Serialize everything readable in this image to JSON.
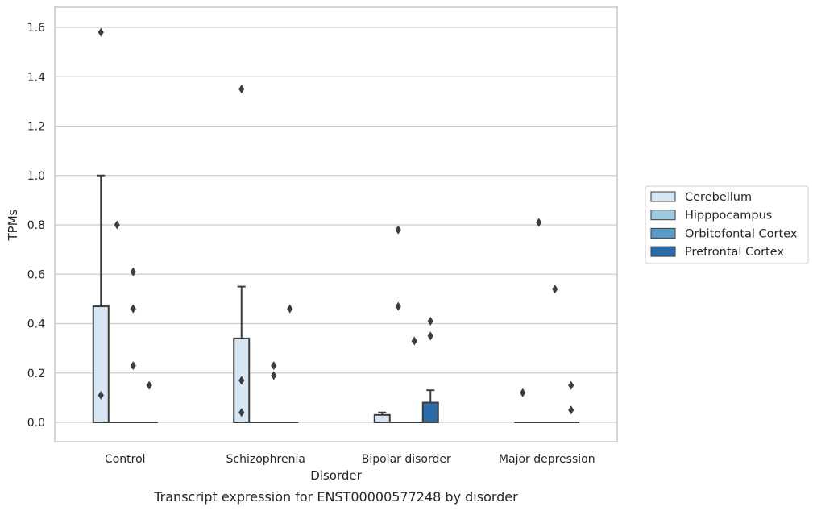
{
  "chart_data": {
    "type": "box",
    "title": "",
    "caption": "Transcript expression for ENST00000577248 by disorder",
    "xlabel": "Disorder",
    "ylabel": "TPMs",
    "ylim": [
      -0.08,
      1.66
    ],
    "yticks": [
      0.0,
      0.2,
      0.4,
      0.6,
      0.8,
      1.0,
      1.2,
      1.4,
      1.6
    ],
    "ytick_labels": [
      "0.0",
      "0.2",
      "0.4",
      "0.6",
      "0.8",
      "1.0",
      "1.2",
      "1.4",
      "1.6"
    ],
    "grid": true,
    "legend_position": "right",
    "categories": [
      "Control",
      "Schizophrenia",
      "Bipolar disorder",
      "Major depression"
    ],
    "series": [
      {
        "name": "Cerebellum",
        "color": "#d6e6f4",
        "boxes": [
          {
            "q1": 0,
            "median": 0,
            "q3": 0.47,
            "whisker_low": 0,
            "whisker_high": 1.0,
            "outliers": [
              1.58,
              0.11
            ]
          },
          {
            "q1": 0,
            "median": 0,
            "q3": 0.34,
            "whisker_low": 0,
            "whisker_high": 0.55,
            "outliers": [
              1.35,
              0.17,
              0.04
            ]
          },
          {
            "q1": 0,
            "median": 0,
            "q3": 0.03,
            "whisker_low": 0,
            "whisker_high": 0.04,
            "outliers": []
          },
          {
            "q1": 0,
            "median": 0,
            "q3": 0,
            "whisker_low": 0,
            "whisker_high": 0,
            "outliers": [
              0.12
            ]
          }
        ]
      },
      {
        "name": "Hipppocampus",
        "color": "#9ecae1",
        "boxes": [
          {
            "q1": 0,
            "median": 0,
            "q3": 0,
            "whisker_low": 0,
            "whisker_high": 0,
            "outliers": [
              0.8
            ]
          },
          {
            "q1": 0,
            "median": 0,
            "q3": 0,
            "whisker_low": 0,
            "whisker_high": 0,
            "outliers": []
          },
          {
            "q1": 0,
            "median": 0,
            "q3": 0,
            "whisker_low": 0,
            "whisker_high": 0,
            "outliers": [
              0.78,
              0.47
            ]
          },
          {
            "q1": 0,
            "median": 0,
            "q3": 0,
            "whisker_low": 0,
            "whisker_high": 0,
            "outliers": [
              0.81
            ]
          }
        ]
      },
      {
        "name": "Orbitofontal Cortex",
        "color": "#5a9ac8",
        "boxes": [
          {
            "q1": 0,
            "median": 0,
            "q3": 0,
            "whisker_low": 0,
            "whisker_high": 0,
            "outliers": [
              0.61,
              0.46,
              0.23
            ]
          },
          {
            "q1": 0,
            "median": 0,
            "q3": 0,
            "whisker_low": 0,
            "whisker_high": 0,
            "outliers": [
              0.23,
              0.19
            ]
          },
          {
            "q1": 0,
            "median": 0,
            "q3": 0,
            "whisker_low": 0,
            "whisker_high": 0,
            "outliers": [
              0.33
            ]
          },
          {
            "q1": 0,
            "median": 0,
            "q3": 0,
            "whisker_low": 0,
            "whisker_high": 0,
            "outliers": [
              0.54
            ]
          }
        ]
      },
      {
        "name": "Prefrontal Cortex",
        "color": "#2a6aa8",
        "boxes": [
          {
            "q1": 0,
            "median": 0,
            "q3": 0,
            "whisker_low": 0,
            "whisker_high": 0,
            "outliers": [
              0.15
            ]
          },
          {
            "q1": 0,
            "median": 0,
            "q3": 0,
            "whisker_low": 0,
            "whisker_high": 0,
            "outliers": [
              0.46
            ]
          },
          {
            "q1": 0,
            "median": 0,
            "q3": 0.08,
            "whisker_low": 0,
            "whisker_high": 0.13,
            "outliers": [
              0.41,
              0.35
            ]
          },
          {
            "q1": 0,
            "median": 0,
            "q3": 0,
            "whisker_low": 0,
            "whisker_high": 0,
            "outliers": [
              0.15,
              0.05
            ]
          }
        ]
      }
    ]
  }
}
